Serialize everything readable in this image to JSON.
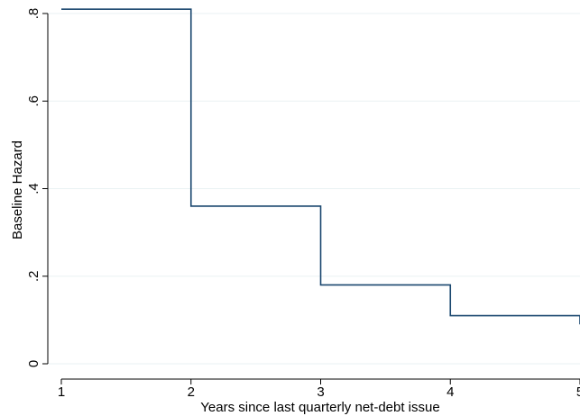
{
  "chart_data": {
    "type": "line",
    "step": true,
    "xlabel": "Years since last quarterly net-debt issue",
    "ylabel": "Baseline Hazard",
    "xlim": [
      1,
      5
    ],
    "ylim": [
      0,
      0.8
    ],
    "x_ticks": [
      1,
      2,
      3,
      4,
      5
    ],
    "x_tick_labels": [
      "1",
      "2",
      "3",
      "4",
      "5"
    ],
    "y_ticks": [
      0,
      0.2,
      0.4,
      0.6,
      0.8
    ],
    "y_tick_labels": [
      "0",
      ".2",
      ".4",
      ".6",
      ".8"
    ],
    "grid": true,
    "series": [
      {
        "x": [
          1,
          2,
          3,
          4,
          5
        ],
        "y": [
          0.81,
          0.36,
          0.18,
          0.11,
          0.09
        ],
        "color": "#1a476f"
      }
    ]
  }
}
